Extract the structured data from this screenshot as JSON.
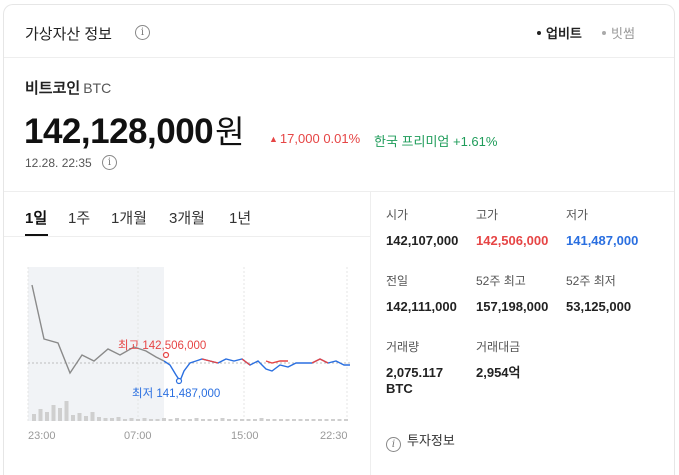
{
  "header": {
    "title": "가상자산 정보",
    "sources": [
      "업비트",
      "빗썸"
    ],
    "active_source": "업비트"
  },
  "coin": {
    "name": "비트코인",
    "symbol": "BTC"
  },
  "price": {
    "value": "142,128,000",
    "unit": "원",
    "change": "17,000",
    "change_pct": "0.01%",
    "change_dir": "up",
    "premium_label": "한국 프리미엄",
    "premium_value": "+1.61%",
    "timestamp": "12.28. 22:35"
  },
  "tabs": [
    "1일",
    "1주",
    "1개월",
    "3개월",
    "1년"
  ],
  "active_tab": "1일",
  "chart": {
    "high_label": "최고 142,506,000",
    "low_label": "최저 141,487,000",
    "x_ticks": [
      "23:00",
      "07:00",
      "15:00",
      "22:30"
    ]
  },
  "stats": [
    {
      "label": "시가",
      "value": "142,107,000",
      "tone": "normal"
    },
    {
      "label": "고가",
      "value": "142,506,000",
      "tone": "red"
    },
    {
      "label": "저가",
      "value": "141,487,000",
      "tone": "blue"
    },
    {
      "label": "전일",
      "value": "142,111,000",
      "tone": "normal"
    },
    {
      "label": "52주 최고",
      "value": "157,198,000",
      "tone": "normal"
    },
    {
      "label": "52주 최저",
      "value": "53,125,000",
      "tone": "normal"
    },
    {
      "label": "거래량",
      "value": "2,075.117",
      "value2": "BTC",
      "tone": "normal"
    },
    {
      "label": "거래대금",
      "value": "2,954억",
      "tone": "normal"
    }
  ],
  "footer": {
    "invest_label": "투자정보"
  },
  "colors": {
    "up": "#e64545",
    "down": "#2a6fe0",
    "premium": "#1f9c5a",
    "line_past": "#8a8a8a"
  }
}
